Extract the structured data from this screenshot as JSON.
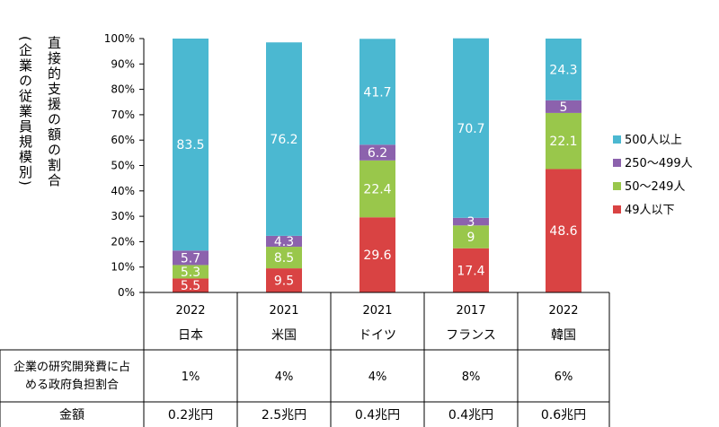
{
  "chart_data": {
    "type": "bar",
    "stacked": true,
    "ylabel": "直接的支援の額の割合",
    "ylabel_sub": "(企業の従業員規模別)",
    "ylim": [
      0,
      100
    ],
    "yticks": [
      "0%",
      "10%",
      "20%",
      "30%",
      "40%",
      "50%",
      "60%",
      "70%",
      "80%",
      "90%",
      "100%"
    ],
    "categories": [
      {
        "year": "2022",
        "country": "日本"
      },
      {
        "year": "2021",
        "country": "米国"
      },
      {
        "year": "2021",
        "country": "ドイツ"
      },
      {
        "year": "2017",
        "country": "フランス"
      },
      {
        "year": "2022",
        "country": "韓国"
      }
    ],
    "series": [
      {
        "name": "49人以下",
        "color": "#d94343",
        "values": [
          5.5,
          9.5,
          29.6,
          17.4,
          48.6
        ]
      },
      {
        "name": "50～249人",
        "color": "#99c74b",
        "values": [
          5.3,
          8.5,
          22.4,
          9.0,
          22.1
        ]
      },
      {
        "name": "250～499人",
        "color": "#8c62ad",
        "values": [
          5.7,
          4.3,
          6.2,
          3.0,
          5.0
        ]
      },
      {
        "name": "500人以上",
        "color": "#4bb8d1",
        "values": [
          83.5,
          76.2,
          41.7,
          70.7,
          24.3
        ]
      }
    ],
    "legend_position": "right",
    "legend_order": [
      "500人以上",
      "250～499人",
      "50～249人",
      "49人以下"
    ],
    "table": {
      "rows": [
        {
          "header": "企業の研究開発費に占める政府負担割合",
          "values": [
            "1%",
            "4%",
            "4%",
            "8%",
            "6%"
          ]
        },
        {
          "header": "金額",
          "values": [
            "0.2兆円",
            "2.5兆円",
            "0.4兆円",
            "0.4兆円",
            "0.6兆円"
          ]
        }
      ]
    }
  }
}
